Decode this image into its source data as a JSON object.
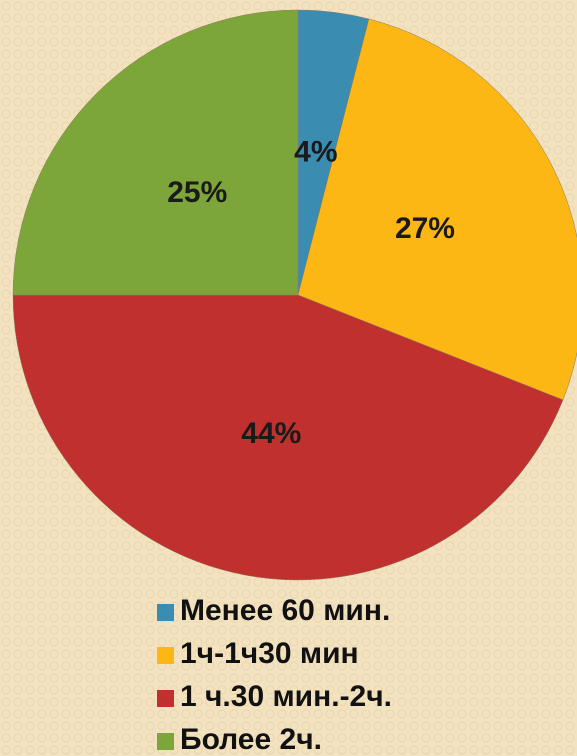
{
  "chart_data": {
    "type": "pie",
    "categories": [
      "Менее 60 мин.",
      "1ч-1ч30 мин",
      "1 ч.30 мин.-2ч.",
      "Более 2ч."
    ],
    "values": [
      4,
      27,
      44,
      25
    ],
    "value_labels": [
      "4%",
      "27%",
      "44%",
      "25%"
    ],
    "colors": [
      "#3a8db0",
      "#fdb714",
      "#c0302f",
      "#7da63a"
    ],
    "legend": "bottom"
  }
}
